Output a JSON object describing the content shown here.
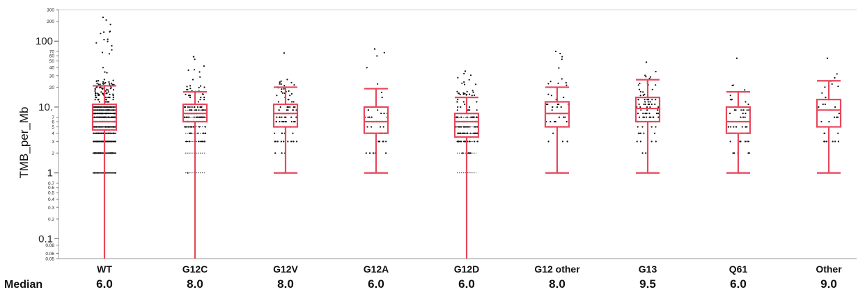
{
  "chart_data": {
    "type": "box",
    "title": "",
    "xlabel": "",
    "ylabel": "TMB_per_Mb",
    "yscale": "log",
    "ylim": [
      0.05,
      300
    ],
    "grid": false,
    "major_ticks": [
      {
        "value": 0.1,
        "label": "0.1"
      },
      {
        "value": 1,
        "label": "1"
      },
      {
        "value": 10,
        "label": "10."
      },
      {
        "value": 100,
        "label": "100"
      }
    ],
    "minor_ticks": [
      {
        "value": 0.05,
        "label": "0.05"
      },
      {
        "value": 0.06,
        "label": "0.06"
      },
      {
        "value": 0.08,
        "label": "0.08"
      },
      {
        "value": 0.2,
        "label": "0.2"
      },
      {
        "value": 0.3,
        "label": "0.3"
      },
      {
        "value": 0.4,
        "label": "0.4"
      },
      {
        "value": 0.5,
        "label": "0.5"
      },
      {
        "value": 0.6,
        "label": "0.6"
      },
      {
        "value": 0.7,
        "label": "0.7"
      },
      {
        "value": 2,
        "label": "2"
      },
      {
        "value": 3,
        "label": "3"
      },
      {
        "value": 4,
        "label": "4"
      },
      {
        "value": 5,
        "label": "5"
      },
      {
        "value": 6,
        "label": "6"
      },
      {
        "value": 7,
        "label": "7"
      },
      {
        "value": 20,
        "label": "20"
      },
      {
        "value": 30,
        "label": "30"
      },
      {
        "value": 40,
        "label": "40"
      },
      {
        "value": 50,
        "label": "50"
      },
      {
        "value": 60,
        "label": "60"
      },
      {
        "value": 70,
        "label": "70"
      },
      {
        "value": 200,
        "label": "200"
      },
      {
        "value": 300,
        "label": "300"
      }
    ],
    "median_row_label": "Median",
    "categories": [
      "WT",
      "G12C",
      "G12V",
      "G12A",
      "G12D",
      "G12 other",
      "G13",
      "Q61",
      "Other"
    ],
    "boxes": [
      {
        "category": "WT",
        "whisker_low": 0.05,
        "q1": 4.5,
        "median": 6.0,
        "q3": 11,
        "whisker_high": 21,
        "median_label": "6.0",
        "max_point": 230
      },
      {
        "category": "G12C",
        "whisker_low": 0.05,
        "q1": 6.0,
        "median": 8.0,
        "q3": 11,
        "whisker_high": 17,
        "median_label": "8.0",
        "max_point": 58
      },
      {
        "category": "G12V",
        "whisker_low": 1,
        "q1": 5.0,
        "median": 8.0,
        "q3": 11,
        "whisker_high": 20,
        "median_label": "8.0",
        "max_point": 66
      },
      {
        "category": "G12A",
        "whisker_low": 1,
        "q1": 4.0,
        "median": 6.0,
        "q3": 10,
        "whisker_high": 19,
        "median_label": "6.0",
        "max_point": 76
      },
      {
        "category": "G12D",
        "whisker_low": 0.05,
        "q1": 3.5,
        "median": 6.0,
        "q3": 8,
        "whisker_high": 14,
        "median_label": "6.0",
        "max_point": 35
      },
      {
        "category": "G12 other",
        "whisker_low": 1,
        "q1": 5.0,
        "median": 8.0,
        "q3": 12,
        "whisker_high": 20,
        "median_label": "8.0",
        "max_point": 70
      },
      {
        "category": "G13",
        "whisker_low": 1,
        "q1": 6.0,
        "median": 9.5,
        "q3": 14,
        "whisker_high": 26,
        "median_label": "9.5",
        "max_point": 48
      },
      {
        "category": "Q61",
        "whisker_low": 1,
        "q1": 4.0,
        "median": 6.0,
        "q3": 10,
        "whisker_high": 17,
        "median_label": "6.0",
        "max_point": 55
      },
      {
        "category": "Other",
        "whisker_low": 1,
        "q1": 5.0,
        "median": 9.0,
        "q3": 13,
        "whisker_high": 25,
        "median_label": "9.0",
        "max_point": 55
      }
    ],
    "point_density": [
      420,
      150,
      110,
      55,
      140,
      55,
      95,
      60,
      30
    ],
    "box_color": "#e8475b",
    "point_color": "#111111"
  }
}
